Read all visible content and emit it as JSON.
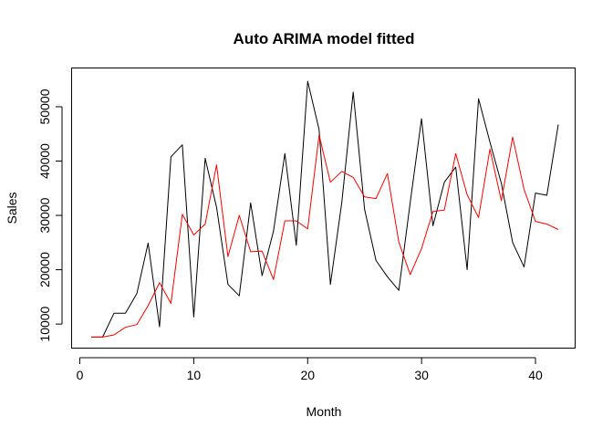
{
  "chart_data": {
    "type": "line",
    "title": "Auto ARIMA model fitted",
    "xlabel": "Month",
    "ylabel": "Sales",
    "xlim": [
      1,
      42
    ],
    "ylim": [
      7500,
      54700
    ],
    "x_ticks": [
      0,
      10,
      20,
      30,
      40
    ],
    "y_ticks": [
      10000,
      20000,
      30000,
      40000,
      50000
    ],
    "grid": false,
    "legend": "none",
    "x": [
      1,
      2,
      3,
      4,
      5,
      6,
      7,
      8,
      9,
      10,
      11,
      12,
      13,
      14,
      15,
      16,
      17,
      18,
      19,
      20,
      21,
      22,
      23,
      24,
      25,
      26,
      27,
      28,
      29,
      30,
      31,
      32,
      33,
      34,
      35,
      36,
      37,
      38,
      39,
      40,
      41,
      42
    ],
    "series": [
      {
        "color": "#000000",
        "values": [
          7600,
          7600,
          12000,
          12000,
          15600,
          24900,
          9500,
          40800,
          43000,
          11300,
          40500,
          31500,
          17300,
          15200,
          32300,
          18900,
          27100,
          41400,
          24500,
          54700,
          45800,
          17300,
          32400,
          52700,
          31100,
          21700,
          18700,
          16200,
          32400,
          47800,
          28100,
          36100,
          38900,
          20000,
          51500,
          43500,
          35900,
          25000,
          20500,
          34100,
          33700,
          46700
        ]
      },
      {
        "color": "#ff0000",
        "values": [
          7600,
          7600,
          8000,
          9400,
          9900,
          13400,
          17600,
          13800,
          30200,
          26400,
          28400,
          39300,
          22400,
          30000,
          23300,
          23400,
          18200,
          29000,
          29000,
          27500,
          44800,
          36100,
          38100,
          37000,
          33400,
          33100,
          37700,
          25100,
          19100,
          23900,
          30700,
          31000,
          41400,
          33800,
          29600,
          42200,
          32700,
          44400,
          34800,
          28900,
          28400,
          27400
        ]
      }
    ]
  }
}
